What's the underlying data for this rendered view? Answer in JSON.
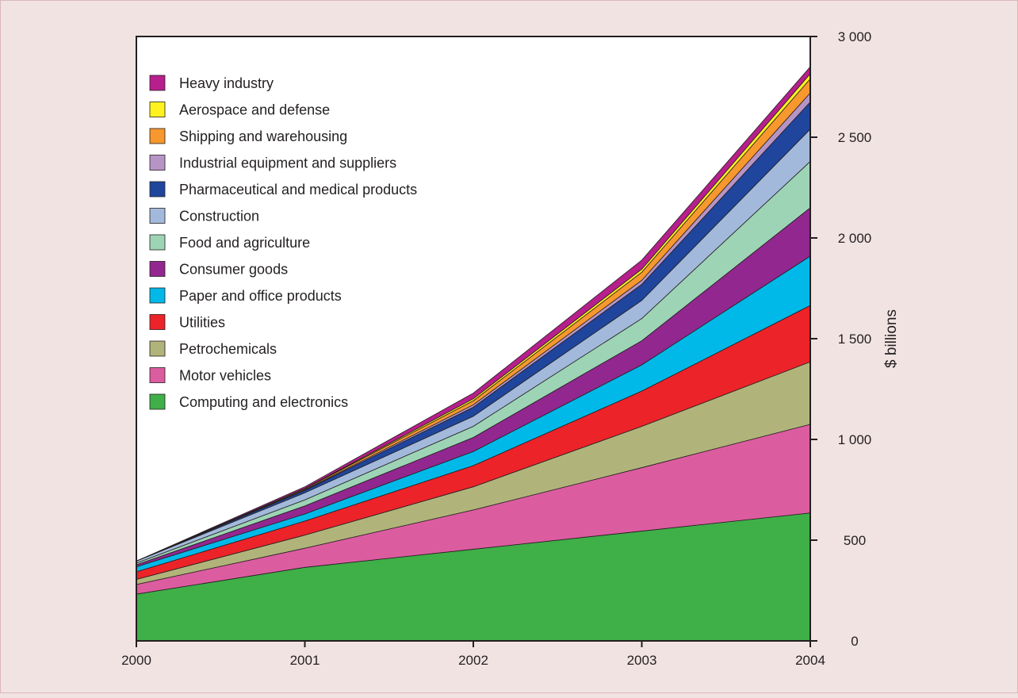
{
  "chart_data": {
    "type": "area",
    "stacked": true,
    "title": "",
    "xlabel": "",
    "ylabel": "$ billions",
    "x": [
      "2000",
      "2001",
      "2002",
      "2003",
      "2004"
    ],
    "ylim": [
      0,
      3000
    ],
    "yticks": [
      0,
      500,
      1000,
      1500,
      2000,
      2500,
      3000
    ],
    "ytick_labels": [
      "0",
      "500",
      "1 000",
      "1 500",
      "2 000",
      "2 500",
      "3 000"
    ],
    "y_axis_side": "right",
    "legend_position": "top-left",
    "grid": false,
    "series": [
      {
        "name": "Computing and electronics",
        "color": "#3faf48",
        "values": [
          232,
          365,
          455,
          545,
          635
        ]
      },
      {
        "name": "Motor vehicles",
        "color": "#dc5ca0",
        "values": [
          48,
          95,
          195,
          315,
          440
        ]
      },
      {
        "name": "Petrochemicals",
        "color": "#b1b47a",
        "values": [
          25,
          65,
          115,
          205,
          310
        ]
      },
      {
        "name": "Utilities",
        "color": "#ec2329",
        "values": [
          38,
          70,
          105,
          175,
          280
        ]
      },
      {
        "name": "Paper and office products",
        "color": "#00b9e8",
        "values": [
          25,
          35,
          70,
          130,
          245
        ]
      },
      {
        "name": "Consumer goods",
        "color": "#92278f",
        "values": [
          10,
          40,
          70,
          120,
          240
        ]
      },
      {
        "name": "Food and agriculture",
        "color": "#9dd4b5",
        "values": [
          8,
          30,
          55,
          110,
          230
        ]
      },
      {
        "name": "Construction",
        "color": "#a2b9db",
        "values": [
          10,
          35,
          50,
          90,
          160
        ]
      },
      {
        "name": "Pharmaceutical and medical products",
        "color": "#1f459c",
        "values": [
          0,
          12,
          45,
          80,
          135
        ]
      },
      {
        "name": "Industrial equipment and suppliers",
        "color": "#b794c6",
        "values": [
          0,
          3,
          12,
          20,
          45
        ]
      },
      {
        "name": "Shipping and warehousing",
        "color": "#f6982e",
        "values": [
          0,
          5,
          20,
          40,
          70
        ]
      },
      {
        "name": "Aerospace and defense",
        "color": "#fff21f",
        "values": [
          0,
          2,
          10,
          15,
          25
        ]
      },
      {
        "name": "Heavy industry",
        "color": "#b61f8c",
        "values": [
          0,
          8,
          28,
          45,
          35
        ]
      }
    ]
  }
}
